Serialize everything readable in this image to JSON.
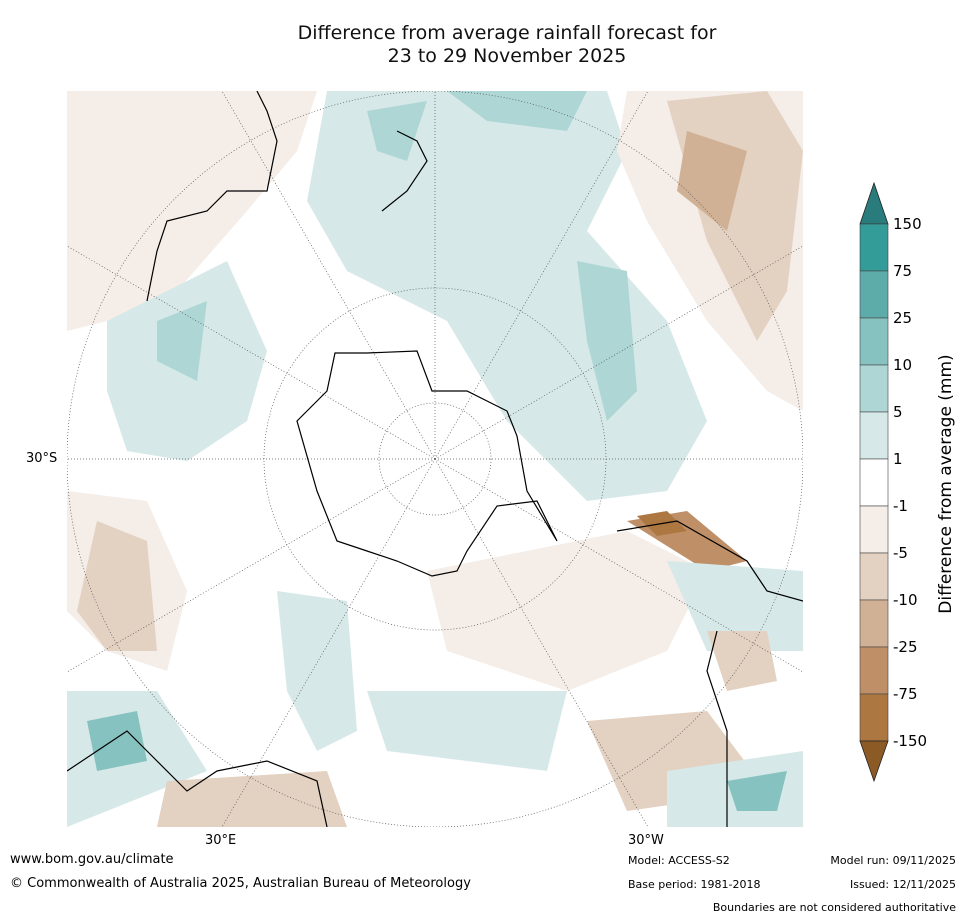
{
  "title": {
    "line1": "Difference from average rainfall forecast for",
    "line2": "23 to 29 November 2025"
  },
  "map": {
    "labels": {
      "lat": "30°S",
      "lon_east": "30°E",
      "lon_west": "30°W"
    }
  },
  "legend": {
    "title": "Difference from average (mm)",
    "ticks": [
      "150",
      "75",
      "25",
      "10",
      "5",
      "1",
      "-1",
      "-5",
      "-10",
      "-25",
      "-75",
      "-150"
    ],
    "colors": [
      "#339b98",
      "#5eacaa",
      "#86c2c0",
      "#aed6d5",
      "#d6e9e8",
      "#ffffff",
      "#f4ede8",
      "#e3d1c1",
      "#d1b195",
      "#bf9068",
      "#ad7742"
    ],
    "over_color": "#2a7b7b",
    "under_color": "#8c5a25"
  },
  "footer": {
    "website": "www.bom.gov.au/climate",
    "copyright": "© Commonwealth of Australia 2025, Australian Bureau of Meteorology",
    "model": "Model: ACCESS-S2",
    "base_period": "Base period: 1981-2018",
    "model_run": "Model run: 09/11/2025",
    "issued": "Issued: 12/11/2025",
    "disclaimer": "Boundaries are not considered authoritative"
  }
}
